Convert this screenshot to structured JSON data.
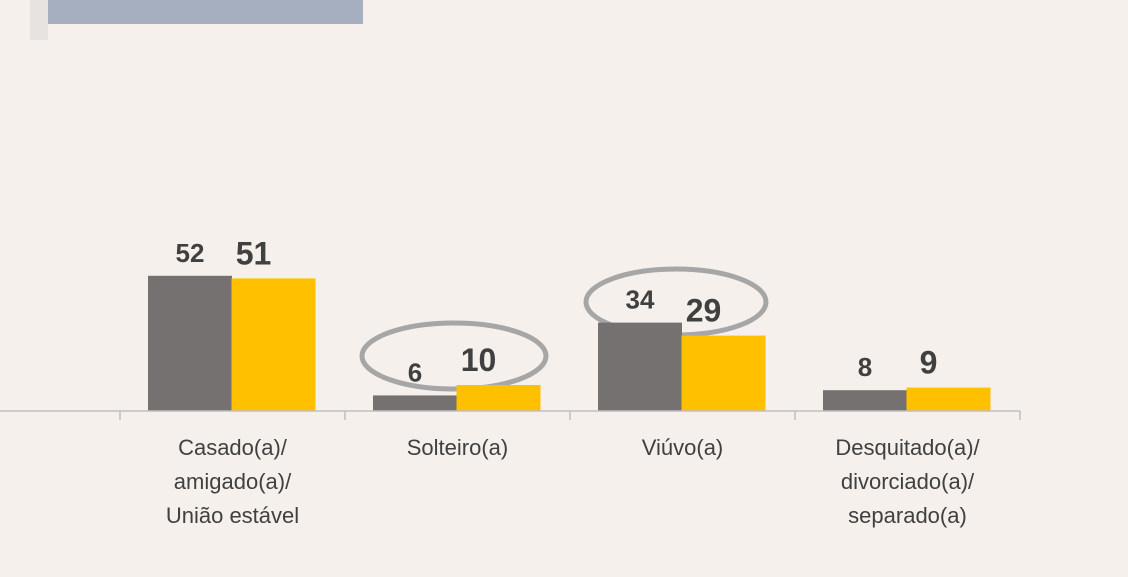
{
  "chart_data": {
    "type": "bar",
    "categories": [
      "Casado(a)/\namigado(a)/\nUnião estável",
      "Solteiro(a)",
      "Viúvo(a)",
      "Desquitado(a)/\ndivorciado(a)/\nseparado(a)"
    ],
    "series": [
      {
        "color": "#767171",
        "values": [
          52,
          6,
          34,
          8
        ]
      },
      {
        "color": "#ffc000",
        "values": [
          51,
          10,
          29,
          9
        ]
      }
    ],
    "ylim": [
      0,
      60
    ]
  }
}
